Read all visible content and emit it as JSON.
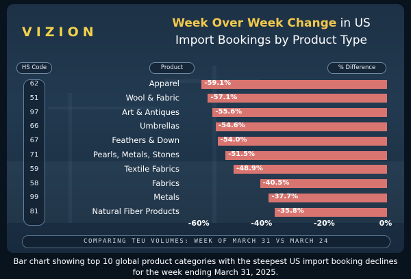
{
  "brand": "VIZION",
  "title": {
    "accent": "Week Over Week Change",
    "rest_line1": " in US",
    "line2": "Import Bookings by Product Type"
  },
  "headers": {
    "hs_code": "HS Code",
    "product": "Product",
    "difference": "% Difference"
  },
  "footer": "COMPARING TEU VOLUMES: WEEK OF MARCH 31 VS MARCH 24",
  "caption": "Bar chart showing top 10 global product categories with the steepest US import booking declines for the week ending March 31, 2025.",
  "colors": {
    "bar": "#d97570",
    "accent": "#f2c94c",
    "background": "#1d3146"
  },
  "chart_data": {
    "type": "bar",
    "orientation": "horizontal",
    "categories": [
      "Apparel",
      "Wool & Fabric",
      "Art & Antiques",
      "Umbrellas",
      "Feathers & Down",
      "Pearls, Metals, Stones",
      "Textile Fabrics",
      "Fabrics",
      "Metals",
      "Natural Fiber Products"
    ],
    "hs_codes": [
      "62",
      "51",
      "97",
      "66",
      "67",
      "71",
      "59",
      "58",
      "99",
      "81"
    ],
    "values": [
      -59.1,
      -57.1,
      -55.6,
      -54.6,
      -54.0,
      -51.5,
      -48.9,
      -40.5,
      -37.7,
      -35.8
    ],
    "value_labels": [
      "-59.1%",
      "-57.1%",
      "-55.6%",
      "-54.6%",
      "-54.0%",
      "-51.5%",
      "-48.9%",
      "-40.5%",
      "-37.7%",
      "-35.8%"
    ],
    "x_ticks": [
      "-60%",
      "-40%",
      "-20%",
      "0%"
    ],
    "x_tick_values": [
      -60,
      -40,
      -20,
      0
    ],
    "xlim": [
      -60,
      0
    ],
    "grid": false
  }
}
